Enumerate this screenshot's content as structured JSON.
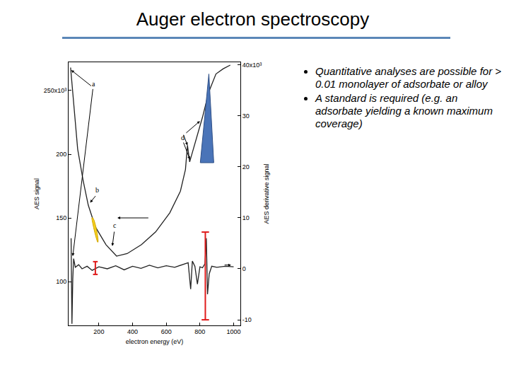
{
  "title": "Auger electron spectroscopy",
  "bullets": [
    "Quantitative analyses are possible for > 0.01 monolayer of adsorbate or alloy",
    "A standard is required (e.g. an adsorbate yielding a known maximum coverage)"
  ],
  "chart_data": {
    "type": "line",
    "x_label": "electron energy (eV)",
    "y_label": "AES signal",
    "y2_label": "AES derivative signal",
    "xlim": [
      20,
      1040
    ],
    "xticks": [
      200,
      400,
      600,
      800,
      1000
    ],
    "ylim": [
      65.6,
      272.2
    ],
    "yticks": [
      100,
      150,
      200,
      {
        "value": 250,
        "label": "250x10³"
      }
    ],
    "y2lim": [
      -11.1,
      40.5
    ],
    "y2ticks": [
      -10,
      0,
      10,
      20,
      30,
      {
        "value": 40,
        "label": "40x10³"
      }
    ],
    "grid": false,
    "series": [
      {
        "color": "#222222",
        "axis": "y",
        "x": [
          32,
          53,
          74,
          107,
          137,
          179,
          242,
          305,
          368,
          453,
          537,
          621,
          684,
          714,
          726,
          739,
          781,
          815,
          853,
          895,
          937,
          980
        ],
        "values": [
          268,
          238,
          204,
          179,
          160,
          143,
          129,
          120,
          122,
          129,
          139,
          154,
          171,
          188,
          207,
          194,
          213,
          229,
          249,
          263,
          267,
          270
        ]
      },
      {
        "color": "#222222",
        "axis": "y2",
        "x": [
          35,
          40,
          45,
          50,
          60,
          80,
          100,
          130,
          160,
          200,
          250,
          300,
          350,
          400,
          450,
          500,
          550,
          600,
          650,
          700,
          730,
          745,
          755,
          770,
          785,
          800,
          815,
          830,
          838,
          845,
          855,
          870,
          900,
          950,
          1000
        ],
        "values": [
          6,
          -10.8,
          -2,
          2,
          0.3,
          0.8,
          0,
          0.5,
          -0.3,
          0.4,
          0,
          0.6,
          -0.2,
          0.5,
          0.1,
          0.7,
          0.2,
          0.6,
          0.3,
          0.8,
          1.2,
          -4,
          1.5,
          0.5,
          -3,
          0.4,
          0.2,
          1,
          6,
          -5,
          -1,
          0.5,
          0.3,
          0.5,
          0.4
        ]
      }
    ],
    "annotations": [
      {
        "text": "a",
        "x": 171,
        "y": 255
      },
      {
        "text": "b",
        "x": 192,
        "y": 172
      },
      {
        "text": "c",
        "x": 297,
        "y": 144
      },
      {
        "text": "d",
        "x": 697,
        "y": 213
      }
    ]
  }
}
